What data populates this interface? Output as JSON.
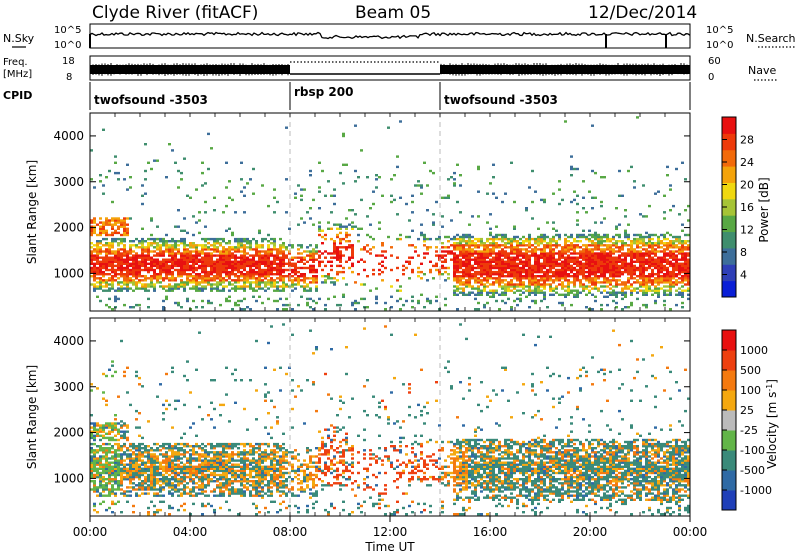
{
  "header": {
    "station": "Clyde River (fitACF)",
    "beam": "Beam 05",
    "date": "12/Dec/2014"
  },
  "top_panels": {
    "nsky_label": "N.Sky",
    "nsky_ticks": [
      "10^5",
      "10^0"
    ],
    "nsearch_label": "N.Search",
    "freq_label_1": "Freq.",
    "freq_label_2": "[MHz]",
    "freq_ticks": [
      "18",
      "8"
    ],
    "nave_label": "Nave",
    "nave_ticks": [
      "60",
      "0"
    ],
    "cpid_label": "CPID",
    "cpid_segments": [
      {
        "name": "twofsound -3503",
        "start_hour": 0,
        "end_hour": 8
      },
      {
        "name": "rbsp 200",
        "start_hour": 8,
        "end_hour": 14
      },
      {
        "name": "twofsound -3503",
        "start_hour": 14,
        "end_hour": 24
      }
    ]
  },
  "x_axis": {
    "label": "Time UT",
    "ticks": [
      "00:00",
      "04:00",
      "08:00",
      "12:00",
      "16:00",
      "20:00",
      "00:00"
    ]
  },
  "chart_data": [
    {
      "type": "heatmap",
      "title": "",
      "xlabel": "Time UT",
      "ylabel": "Slant Range [km]",
      "xlim": [
        0,
        24
      ],
      "ylim": [
        180,
        4500
      ],
      "yticks": [
        "1000",
        "2000",
        "3000",
        "4000"
      ],
      "colorbar": {
        "label": "Power [dB]",
        "ticks": [
          "4",
          "8",
          "12",
          "16",
          "20",
          "24",
          "28"
        ],
        "range": [
          0,
          32
        ],
        "colors": [
          "#0a1fd6",
          "#2f3fb7",
          "#3d6e9a",
          "#3f8e6e",
          "#58a844",
          "#a6c436",
          "#f0d810",
          "#f4a30a",
          "#f26a0a",
          "#ee3a0a",
          "#e81010"
        ]
      }
    },
    {
      "type": "heatmap",
      "title": "",
      "xlabel": "Time UT",
      "ylabel": "Slant Range [km]",
      "xlim": [
        0,
        24
      ],
      "ylim": [
        180,
        4500
      ],
      "yticks": [
        "1000",
        "2000",
        "3000",
        "4000"
      ],
      "colorbar": {
        "label": "Velocity [m s^-1]",
        "ticks": [
          "1000",
          "500",
          "100",
          "25",
          "-25",
          "-100",
          "-500",
          "-1000"
        ],
        "colors": [
          "#1f3fb8",
          "#2f6aa5",
          "#3a8a7a",
          "#62b548",
          "#bbbbbb",
          "#f4a810",
          "#f47a10",
          "#ee4010",
          "#e81010"
        ]
      }
    }
  ]
}
